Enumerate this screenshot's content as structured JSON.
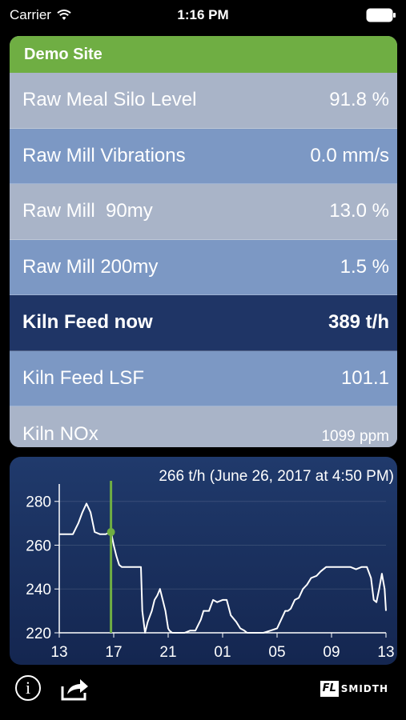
{
  "status_bar": {
    "carrier": "Carrier",
    "time": "1:16 PM"
  },
  "site": {
    "name": "Demo Site",
    "accent": "#6fae43"
  },
  "rows": [
    {
      "label": "Raw Meal Silo Level",
      "value": "91.8 %"
    },
    {
      "label": "Raw Mill Vibrations",
      "value": "0.0 mm/s"
    },
    {
      "label": "Raw Mill  90my",
      "value": "13.0 %"
    },
    {
      "label": "Raw Mill 200my",
      "value": "1.5 %"
    },
    {
      "label": "Kiln Feed now",
      "value": "389 t/h"
    },
    {
      "label": "Kiln Feed LSF",
      "value": "101.1"
    },
    {
      "label": "Kiln NOx",
      "value": "1099 ppm"
    }
  ],
  "chart_data": {
    "type": "line",
    "title": "266 t/h (June 26, 2017 at 4:50 PM)",
    "x_ticks": [
      "13",
      "17",
      "21",
      "01",
      "05",
      "09",
      "13"
    ],
    "y_ticks": [
      "280",
      "260",
      "240",
      "220"
    ],
    "ylim": [
      220,
      285
    ],
    "xlim": [
      0,
      24
    ],
    "cursor": {
      "x": 3.8,
      "y": 266
    },
    "x": [
      0,
      0.5,
      1,
      1.4,
      1.7,
      2.0,
      2.3,
      2.6,
      3.0,
      3.4,
      3.8,
      4.0,
      4.2,
      4.4,
      4.6,
      4.9,
      5.2,
      5.5,
      5.8,
      6.0,
      6.1,
      6.3,
      6.5,
      6.8,
      7.0,
      7.2,
      7.4,
      7.6,
      7.8,
      8.0,
      8.1,
      8.3,
      8.5,
      8.8,
      9.2,
      9.6,
      10.0,
      10.4,
      10.6,
      10.8,
      11.0,
      11.3,
      11.6,
      12.0,
      12.3,
      12.6,
      13.0,
      13.3,
      13.6,
      13.8,
      14.0,
      14.3,
      14.7,
      15.0,
      15.5,
      16.0,
      16.3,
      16.6,
      16.8,
      17.0,
      17.3,
      17.6,
      17.9,
      18.2,
      18.5,
      18.9,
      19.2,
      19.6,
      20.0,
      20.4,
      20.7,
      21.0,
      21.4,
      21.8,
      22.2,
      22.6,
      22.9,
      23.1,
      23.3,
      23.5,
      23.7,
      23.9,
      24.0
    ],
    "y": [
      265,
      265,
      265,
      270,
      275,
      279,
      275,
      266,
      265,
      265,
      266,
      260,
      255,
      251,
      250,
      250,
      250,
      250,
      250,
      250,
      230,
      220,
      225,
      230,
      235,
      237,
      240,
      235,
      230,
      222,
      221,
      220,
      220,
      220,
      220,
      221,
      221,
      226,
      230,
      230,
      230,
      235,
      234,
      235,
      235,
      228,
      225,
      222,
      221,
      220,
      220,
      220,
      220,
      220,
      221,
      222,
      226,
      230,
      230,
      231,
      235,
      236,
      240,
      242,
      245,
      246,
      248,
      250,
      250,
      250,
      250,
      250,
      250,
      249,
      250,
      250,
      245,
      235,
      234,
      240,
      247,
      240,
      230
    ]
  },
  "toolbar": {
    "info_icon": "info-icon",
    "share_icon": "share-icon",
    "logo_box": "FL",
    "logo_text": "SMIDTH"
  }
}
